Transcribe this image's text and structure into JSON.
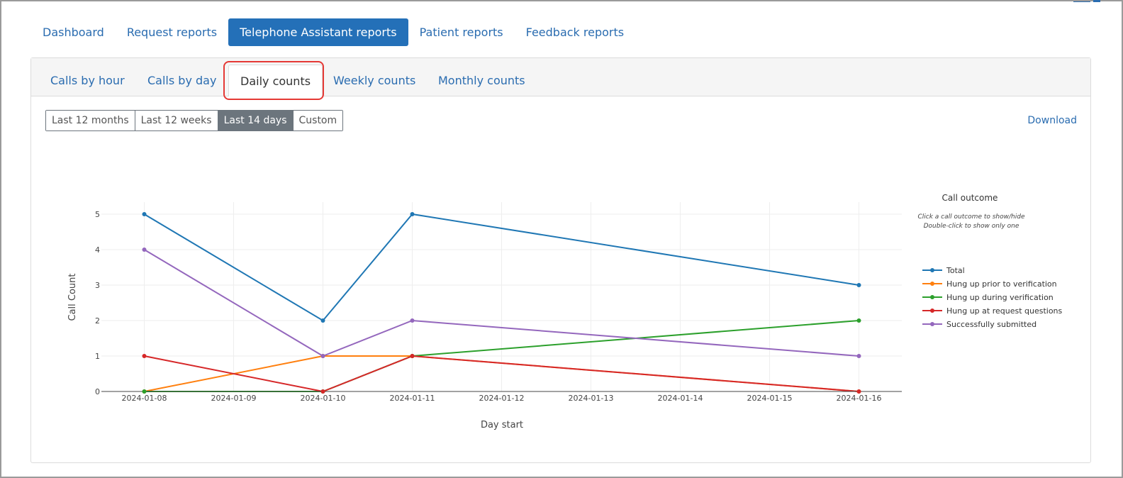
{
  "top_tabs": [
    {
      "label": "Dashboard",
      "active": false
    },
    {
      "label": "Request reports",
      "active": false
    },
    {
      "label": "Telephone Assistant reports",
      "active": true
    },
    {
      "label": "Patient reports",
      "active": false
    },
    {
      "label": "Feedback reports",
      "active": false
    }
  ],
  "sub_tabs": [
    {
      "label": "Calls by hour",
      "active": false
    },
    {
      "label": "Calls by day",
      "active": false
    },
    {
      "label": "Daily counts",
      "active": true
    },
    {
      "label": "Weekly counts",
      "active": false
    },
    {
      "label": "Monthly counts",
      "active": false
    }
  ],
  "range_buttons": [
    {
      "label": "Last 12 months",
      "active": false
    },
    {
      "label": "Last 12 weeks",
      "active": false
    },
    {
      "label": "Last 14 days",
      "active": true
    },
    {
      "label": "Custom",
      "active": false
    }
  ],
  "download_label": "Download",
  "colors": {
    "accent": "#2470b8",
    "link": "#2a6cb0",
    "highlight": "#e53935"
  },
  "chart_data": {
    "type": "line",
    "xlabel": "Day start",
    "ylabel": "Call Count",
    "x": [
      "2024-01-08",
      "2024-01-09",
      "2024-01-10",
      "2024-01-11",
      "2024-01-12",
      "2024-01-13",
      "2024-01-14",
      "2024-01-15",
      "2024-01-16"
    ],
    "ylim": [
      0,
      5
    ],
    "y_ticks": [
      0,
      1,
      2,
      3,
      4,
      5
    ],
    "grid": true,
    "legend": {
      "title": "Call outcome",
      "hint_line1": "Click a call outcome to show/hide",
      "hint_line2": "Double-click to show only one",
      "placement": "right"
    },
    "series": [
      {
        "name": "Total",
        "color": "#1f77b4",
        "points": [
          [
            "2024-01-08",
            5
          ],
          [
            "2024-01-10",
            2
          ],
          [
            "2024-01-11",
            5
          ],
          [
            "2024-01-16",
            3
          ]
        ]
      },
      {
        "name": "Hung up prior to verification",
        "color": "#ff7f0e",
        "points": [
          [
            "2024-01-08",
            0
          ],
          [
            "2024-01-10",
            1
          ],
          [
            "2024-01-11",
            1
          ],
          [
            "2024-01-16",
            0
          ]
        ]
      },
      {
        "name": "Hung up during verification",
        "color": "#2ca02c",
        "points": [
          [
            "2024-01-08",
            0
          ],
          [
            "2024-01-10",
            0
          ],
          [
            "2024-01-11",
            1
          ],
          [
            "2024-01-16",
            2
          ]
        ]
      },
      {
        "name": "Hung up at request questions",
        "color": "#d62728",
        "points": [
          [
            "2024-01-08",
            1
          ],
          [
            "2024-01-10",
            0
          ],
          [
            "2024-01-11",
            1
          ],
          [
            "2024-01-16",
            0
          ]
        ]
      },
      {
        "name": "Successfully submitted",
        "color": "#9467bd",
        "points": [
          [
            "2024-01-08",
            4
          ],
          [
            "2024-01-10",
            1
          ],
          [
            "2024-01-11",
            2
          ],
          [
            "2024-01-16",
            1
          ]
        ]
      }
    ]
  }
}
